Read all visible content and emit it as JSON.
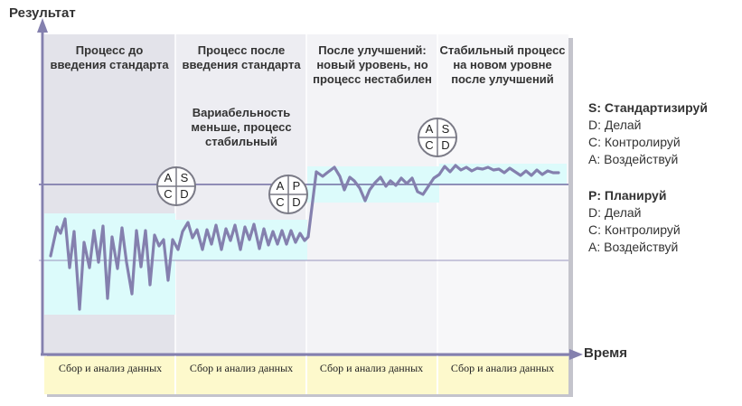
{
  "axes": {
    "y_label": "Результат",
    "x_label": "Время"
  },
  "phases": [
    {
      "title": "Процесс до введения стандарта",
      "note": "",
      "footer": "Сбор и анализ данных"
    },
    {
      "title": "Процесс после введения стандарта",
      "note": "Вариабельность меньше, процесс стабильный",
      "footer": "Сбор и анализ данных"
    },
    {
      "title": "После улучшений: новый уровень, но процесс нестабилен",
      "note": "",
      "footer": "Сбор и анализ данных"
    },
    {
      "title": "Стабильный процесс на новом уровне после улучшений",
      "note": "",
      "footer": "Сбор и анализ данных"
    }
  ],
  "cycles": {
    "sdca": {
      "tl": "A",
      "tr": "S",
      "bl": "C",
      "br": "D"
    },
    "pdca": {
      "tl": "A",
      "tr": "P",
      "bl": "C",
      "br": "D"
    }
  },
  "legend": {
    "sdca": [
      "S: Стандартизируй",
      "D: Делай",
      "C: Контролируй",
      "A: Воздействуй"
    ],
    "pdca": [
      "P: Планируй",
      "D: Делай",
      "C: Контролируй",
      "A: Воздействуй"
    ]
  },
  "colors": {
    "line": "#8480ae",
    "axis": "#8480ae",
    "band": "#dcfbfb",
    "footer_bg": "#fdf9cc",
    "phase1_bg": "#e3e3ea",
    "phase2_bg": "#ededf2",
    "phase3_bg": "#f3f3f6",
    "phase4_bg": "#f7f7f9"
  }
}
